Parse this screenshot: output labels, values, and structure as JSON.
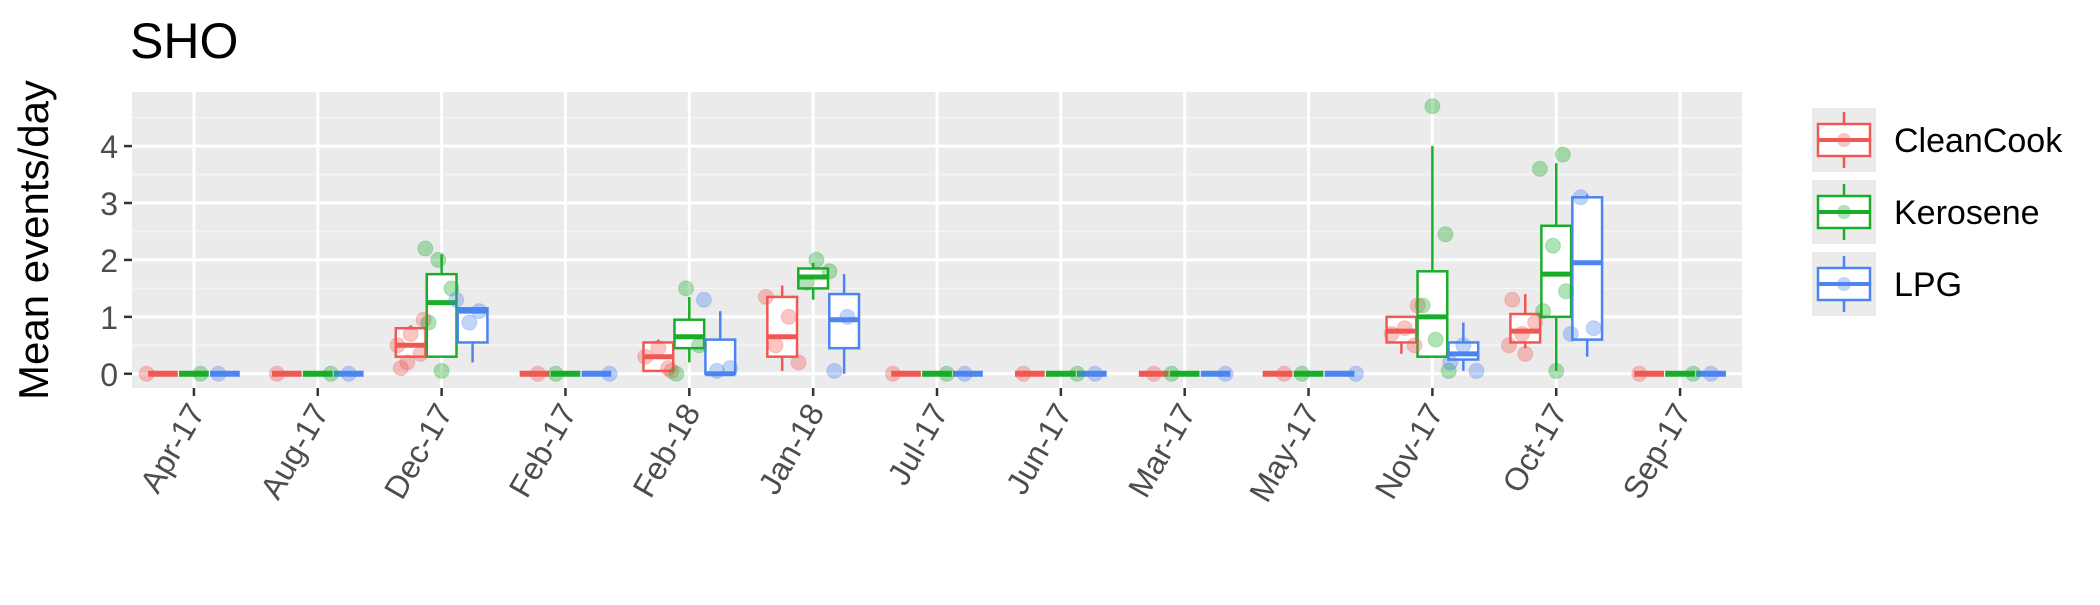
{
  "chart_data": {
    "type": "boxplot",
    "title": "SHO",
    "xlabel": "",
    "ylabel": "Mean events/day",
    "ylim": [
      -0.25,
      4.95
    ],
    "yticks": [
      0,
      1,
      2,
      3,
      4
    ],
    "grid": true,
    "legend": "right",
    "categories": [
      "Apr-17",
      "Aug-17",
      "Dec-17",
      "Feb-17",
      "Feb-18",
      "Jan-18",
      "Jul-17",
      "Jun-17",
      "Mar-17",
      "May-17",
      "Nov-17",
      "Oct-17",
      "Sep-17"
    ],
    "series": [
      {
        "name": "CleanCook",
        "color": "#F15854",
        "boxes": [
          {
            "min": 0,
            "q1": 0,
            "median": 0,
            "q3": 0,
            "max": 0
          },
          {
            "min": 0,
            "q1": 0,
            "median": 0,
            "q3": 0,
            "max": 0
          },
          {
            "min": 0.3,
            "q1": 0.3,
            "median": 0.5,
            "q3": 0.8,
            "max": 0.85
          },
          {
            "min": 0,
            "q1": 0,
            "median": 0,
            "q3": 0,
            "max": 0
          },
          {
            "min": 0.05,
            "q1": 0.05,
            "median": 0.3,
            "q3": 0.55,
            "max": 0.6
          },
          {
            "min": 0.05,
            "q1": 0.3,
            "median": 0.65,
            "q3": 1.35,
            "max": 1.55
          },
          {
            "min": 0,
            "q1": 0,
            "median": 0,
            "q3": 0,
            "max": 0
          },
          {
            "min": 0,
            "q1": 0,
            "median": 0,
            "q3": 0,
            "max": 0
          },
          {
            "min": 0,
            "q1": 0,
            "median": 0,
            "q3": 0,
            "max": 0
          },
          {
            "min": 0,
            "q1": 0,
            "median": 0,
            "q3": 0,
            "max": 0
          },
          {
            "min": 0.35,
            "q1": 0.55,
            "median": 0.75,
            "q3": 1.0,
            "max": 1.0
          },
          {
            "min": 0.45,
            "q1": 0.55,
            "median": 0.75,
            "q3": 1.05,
            "max": 1.4
          },
          {
            "min": 0,
            "q1": 0,
            "median": 0,
            "q3": 0,
            "max": 0
          }
        ],
        "points": [
          [
            0
          ],
          [
            0
          ],
          [
            0.2,
            0.35,
            0.5,
            0.7,
            0.95,
            0.1
          ],
          [
            0
          ],
          [
            0.1,
            0.3,
            0.45,
            0.05
          ],
          [
            0.2,
            0.5,
            1.0,
            1.35
          ],
          [
            0
          ],
          [
            0
          ],
          [
            0
          ],
          [
            0
          ],
          [
            0.5,
            0.7,
            0.8,
            1.2
          ],
          [
            0.5,
            0.7,
            0.9,
            1.3,
            0.35
          ],
          [
            0
          ]
        ]
      },
      {
        "name": "Kerosene",
        "color": "#1AAD2A",
        "boxes": [
          {
            "min": 0,
            "q1": 0,
            "median": 0,
            "q3": 0,
            "max": 0
          },
          {
            "min": 0,
            "q1": 0,
            "median": 0,
            "q3": 0,
            "max": 0
          },
          {
            "min": 0.3,
            "q1": 0.3,
            "median": 1.25,
            "q3": 1.75,
            "max": 2.1
          },
          {
            "min": 0,
            "q1": 0,
            "median": 0,
            "q3": 0,
            "max": 0
          },
          {
            "min": 0.2,
            "q1": 0.45,
            "median": 0.65,
            "q3": 0.95,
            "max": 1.35
          },
          {
            "min": 1.3,
            "q1": 1.5,
            "median": 1.7,
            "q3": 1.85,
            "max": 1.95
          },
          {
            "min": 0,
            "q1": 0,
            "median": 0,
            "q3": 0,
            "max": 0
          },
          {
            "min": 0,
            "q1": 0,
            "median": 0,
            "q3": 0,
            "max": 0
          },
          {
            "min": 0,
            "q1": 0,
            "median": 0,
            "q3": 0,
            "max": 0
          },
          {
            "min": 0,
            "q1": 0,
            "median": 0,
            "q3": 0,
            "max": 0
          },
          {
            "min": 0.3,
            "q1": 0.3,
            "median": 1.0,
            "q3": 1.8,
            "max": 4.0
          },
          {
            "min": 0.05,
            "q1": 1.0,
            "median": 1.75,
            "q3": 2.6,
            "max": 3.7
          },
          {
            "min": 0,
            "q1": 0,
            "median": 0,
            "q3": 0,
            "max": 0
          }
        ],
        "points": [
          [
            0
          ],
          [
            0
          ],
          [
            2.2,
            2.0,
            1.5,
            0.9,
            0.05
          ],
          [
            0
          ],
          [
            1.5,
            0.5,
            0.0
          ],
          [
            2.0,
            1.8,
            1.6
          ],
          [
            0
          ],
          [
            0
          ],
          [
            0
          ],
          [
            0
          ],
          [
            4.7,
            2.45,
            1.2,
            0.6,
            0.05
          ],
          [
            3.85,
            3.6,
            2.25,
            1.45,
            1.1,
            0.05
          ],
          [
            0
          ]
        ]
      },
      {
        "name": "LPG",
        "color": "#4C84F0",
        "boxes": [
          {
            "min": 0,
            "q1": 0,
            "median": 0,
            "q3": 0,
            "max": 0
          },
          {
            "min": 0,
            "q1": 0,
            "median": 0,
            "q3": 0,
            "max": 0
          },
          {
            "min": 0.2,
            "q1": 0.55,
            "median": 1.1,
            "q3": 1.15,
            "max": 1.15
          },
          {
            "min": 0,
            "q1": 0,
            "median": 0,
            "q3": 0,
            "max": 0
          },
          {
            "min": 0,
            "q1": 0,
            "median": 0,
            "q3": 0.6,
            "max": 1.1
          },
          {
            "min": 0,
            "q1": 0.45,
            "median": 0.95,
            "q3": 1.4,
            "max": 1.75
          },
          {
            "min": 0,
            "q1": 0,
            "median": 0,
            "q3": 0,
            "max": 0
          },
          {
            "min": 0,
            "q1": 0,
            "median": 0,
            "q3": 0,
            "max": 0
          },
          {
            "min": 0,
            "q1": 0,
            "median": 0,
            "q3": 0,
            "max": 0
          },
          {
            "min": 0,
            "q1": 0,
            "median": 0,
            "q3": 0,
            "max": 0
          },
          {
            "min": 0.05,
            "q1": 0.25,
            "median": 0.35,
            "q3": 0.55,
            "max": 0.9
          },
          {
            "min": 0.3,
            "q1": 0.6,
            "median": 1.95,
            "q3": 3.1,
            "max": 3.15
          },
          {
            "min": 0,
            "q1": 0,
            "median": 0,
            "q3": 0,
            "max": 0
          }
        ],
        "points": [
          [
            0
          ],
          [
            0
          ],
          [
            1.1,
            1.3,
            0.9
          ],
          [
            0
          ],
          [
            1.3,
            0.05,
            0.1
          ],
          [
            0.05,
            1.0
          ],
          [
            0
          ],
          [
            0
          ],
          [
            0
          ],
          [
            0
          ],
          [
            0.2,
            0.5,
            0.05
          ],
          [
            3.1,
            0.8,
            0.7
          ],
          [
            0
          ]
        ]
      }
    ]
  }
}
